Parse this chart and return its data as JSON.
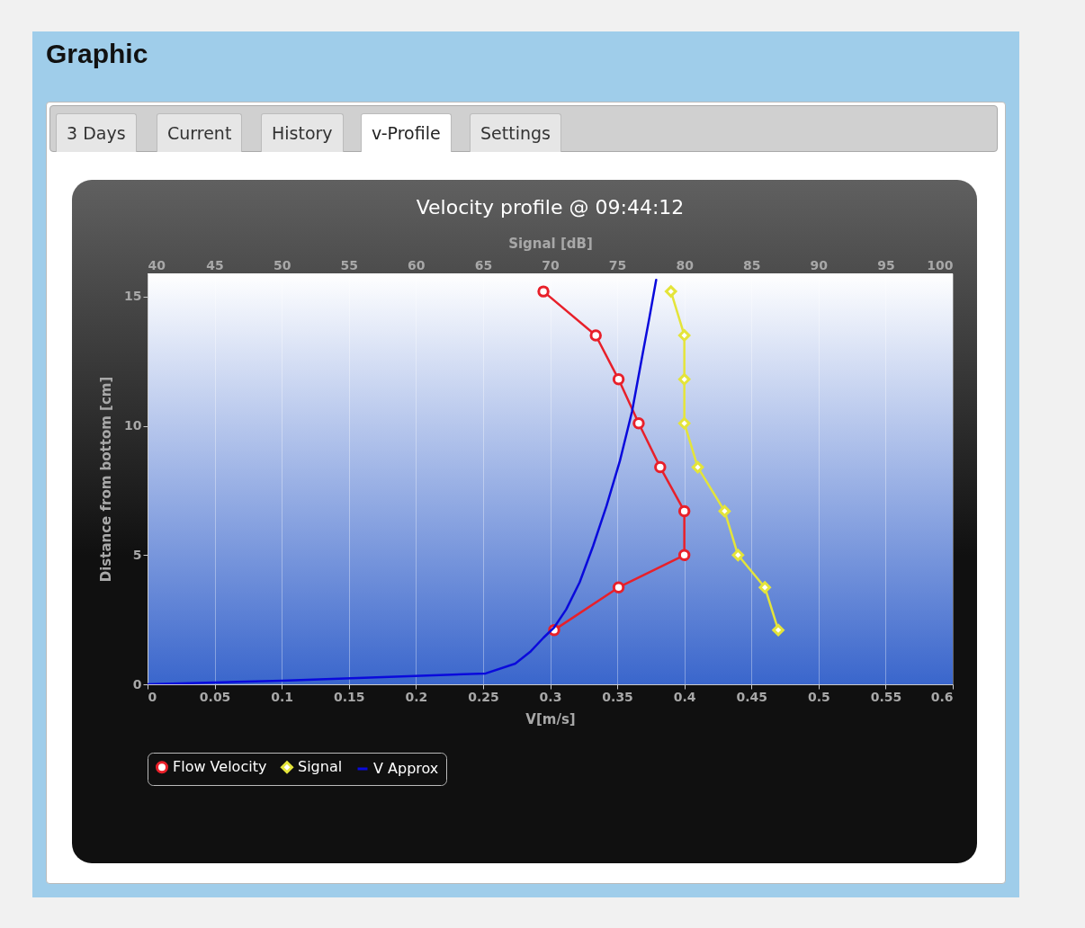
{
  "chart_data": {
    "type": "line",
    "title": "Velocity profile @ 09:44:12",
    "xlabel": "V[m/s]",
    "x2label": "Signal [dB]",
    "ylabel": "Distance from bottom [cm]",
    "xlim": [
      0,
      0.6
    ],
    "xticks": [
      0,
      0.05,
      0.1,
      0.15,
      0.2,
      0.25,
      0.3,
      0.35,
      0.4,
      0.45,
      0.5,
      0.55,
      0.6
    ],
    "x2lim": [
      40,
      100
    ],
    "x2ticks": [
      40,
      45,
      50,
      55,
      60,
      65,
      70,
      75,
      80,
      85,
      90,
      95,
      100
    ],
    "ylim": [
      0,
      15.9
    ],
    "yticks": [
      0,
      5,
      10,
      15
    ],
    "grid": "x",
    "legend": "bottom",
    "line_style": "solid",
    "annotations": [
      "Graphic",
      "3 Days",
      "Current",
      "History",
      "v-Profile",
      "Settings"
    ],
    "series": [
      {
        "name": "Flow Velocity",
        "color": "#e8202a",
        "marker": "circle",
        "x": [
          0.295,
          0.334,
          0.351,
          0.366,
          0.382,
          0.4,
          0.4,
          0.351,
          0.303
        ],
        "values": [
          15.2,
          13.5,
          11.8,
          10.1,
          8.4,
          6.7,
          5.0,
          3.75,
          2.1
        ]
      },
      {
        "name": "Signal",
        "color": "#e4e43a",
        "marker": "diamond",
        "axis": "x2",
        "x": [
          79,
          80,
          80,
          80,
          81,
          83,
          84,
          86,
          87
        ],
        "values": [
          15.2,
          13.5,
          11.8,
          10.1,
          8.4,
          6.7,
          5.0,
          3.75,
          2.1
        ]
      },
      {
        "name": "V Approx",
        "color": "#0a0adc",
        "marker": "none",
        "x": [
          0,
          0.1,
          0.252,
          0.274,
          0.285,
          0.295,
          0.303,
          0.312,
          0.322,
          0.332,
          0.342,
          0.352,
          0.361,
          0.369,
          0.374,
          0.379
        ],
        "values": [
          0,
          0.14,
          0.42,
          0.8,
          1.25,
          1.8,
          2.2,
          2.9,
          3.95,
          5.35,
          6.9,
          8.65,
          10.55,
          12.8,
          14.2,
          15.65
        ]
      }
    ]
  }
}
